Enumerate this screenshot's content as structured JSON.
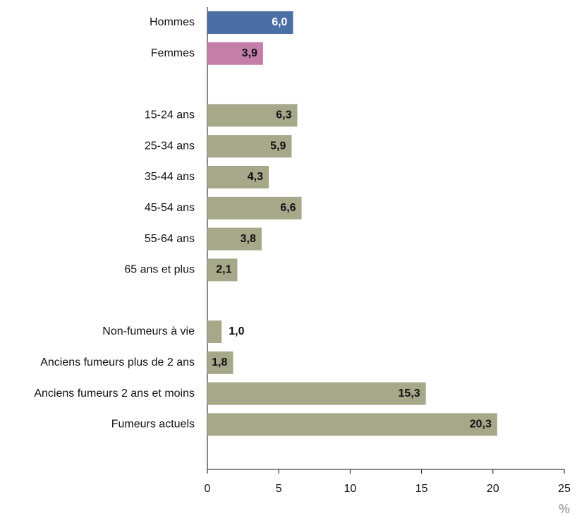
{
  "chart_data": {
    "type": "barh",
    "categories": [
      "Hommes",
      "Femmes",
      null,
      "15-24 ans",
      "25-34 ans",
      "35-44 ans",
      "45-54 ans",
      "55-64 ans",
      "65 ans et plus",
      null,
      "Non-fumeurs à vie",
      "Anciens fumeurs plus de 2 ans",
      "Anciens fumeurs 2 ans et moins",
      "Fumeurs actuels"
    ],
    "values": [
      6.0,
      3.9,
      null,
      6.3,
      5.9,
      4.3,
      6.6,
      3.8,
      2.1,
      null,
      1.0,
      1.8,
      15.3,
      20.3
    ],
    "value_labels": [
      "6,0",
      "3,9",
      null,
      "6,3",
      "5,9",
      "4,3",
      "6,6",
      "3,8",
      "2,1",
      null,
      "1,0",
      "1,8",
      "15,3",
      "20,3"
    ],
    "colors": [
      "#4a6fa5",
      "#c47eaa",
      null,
      "#a6a88a",
      "#a6a88a",
      "#a6a88a",
      "#a6a88a",
      "#a6a88a",
      "#a6a88a",
      null,
      "#a6a88a",
      "#a6a88a",
      "#a6a88a",
      "#a6a88a"
    ],
    "xlim": [
      0,
      25
    ],
    "xticks": [
      0,
      5,
      10,
      15,
      20,
      25
    ],
    "x_label": "%",
    "grid": false
  }
}
